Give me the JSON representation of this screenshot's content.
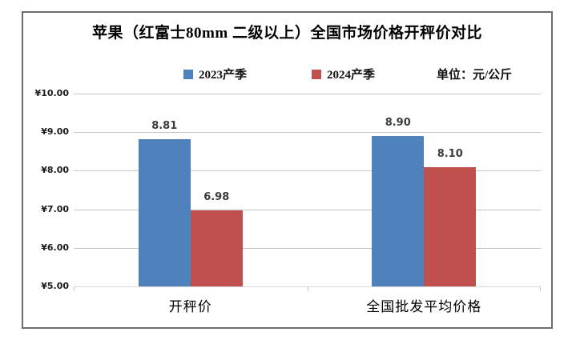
{
  "chart_data": {
    "type": "bar",
    "title": "苹果（红富士80mm 二级以上）全国市场价格开秤价对比",
    "unit": "单位：元/公斤",
    "categories": [
      "开秤价",
      "全国批发平均价格"
    ],
    "series": [
      {
        "name": "2023产季",
        "color": "#4F81BD",
        "values": [
          8.81,
          8.9
        ]
      },
      {
        "name": "2024产季",
        "color": "#C0504D",
        "values": [
          6.98,
          8.1
        ]
      }
    ],
    "ylim": [
      5,
      10
    ],
    "ytick_step": 1,
    "ytick_labels_top_to_bottom": [
      "¥10.00",
      "¥9.00",
      "¥8.00",
      "¥7.00",
      "¥6.00",
      "¥5.00"
    ],
    "grid": true,
    "data_labels": true,
    "legend_position": "top",
    "currency_prefix": "¥"
  },
  "colors": {
    "frame_border": "#6d6d6d",
    "gridline": "#c4c4c4",
    "axis_line": "#d7d7d7",
    "series_2023": "#4F81BD",
    "series_2024": "#C0504D",
    "data_label": "#3b3b3b"
  }
}
